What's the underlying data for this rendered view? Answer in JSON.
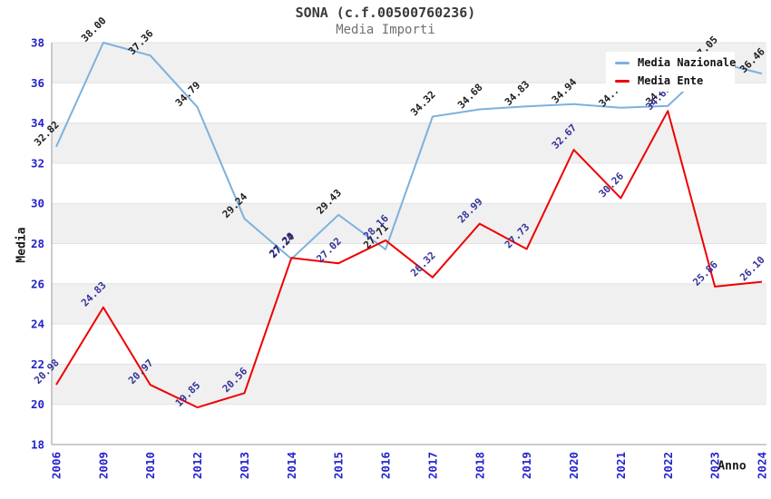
{
  "header": {
    "title": "SONA (c.f.00500760236)",
    "subtitle": "Media Importi"
  },
  "axes": {
    "y_title": "Media",
    "x_title": "Anno",
    "y_ticks": [
      38,
      36,
      34,
      32,
      30,
      28,
      26,
      24,
      22,
      20,
      18
    ],
    "tick_color": "#2323cd",
    "axis_line_color": "#9a9a9a",
    "gridline_color": "#e2e2e2"
  },
  "legend": {
    "position": "top-right",
    "items": [
      {
        "label": "Media Nazionale",
        "color": "#7cb1dd"
      },
      {
        "label": "Media Ente",
        "color": "#ee0000"
      }
    ]
  },
  "chart_data": {
    "type": "line",
    "title": "SONA (c.f.00500760236)",
    "subtitle": "Media Importi",
    "xlabel": "Anno",
    "ylabel": "Media",
    "categories": [
      "2006",
      "2009",
      "2010",
      "2012",
      "2013",
      "2014",
      "2015",
      "2016",
      "2017",
      "2018",
      "2019",
      "2020",
      "2021",
      "2022",
      "2023",
      "2024"
    ],
    "series": [
      {
        "name": "Media Nazionale",
        "color": "#7cb1dd",
        "label_color": "#1c1c1c",
        "values": [
          32.82,
          38.0,
          37.36,
          34.79,
          29.24,
          27.24,
          29.43,
          27.71,
          34.32,
          34.68,
          34.83,
          34.94,
          34.76,
          34.85,
          37.05,
          36.46
        ]
      },
      {
        "name": "Media Ente",
        "color": "#ee0000",
        "label_color": "#333399",
        "values": [
          20.98,
          24.83,
          20.97,
          19.85,
          20.56,
          27.29,
          27.02,
          28.16,
          26.32,
          28.99,
          27.73,
          32.67,
          30.26,
          34.6,
          25.86,
          26.1
        ]
      }
    ],
    "ylim": [
      18,
      38
    ],
    "y_tick_step": 2,
    "grid": true,
    "band_colors": [
      "#ffffff",
      "#f0f0f0"
    ],
    "legend_position": "top-right"
  }
}
